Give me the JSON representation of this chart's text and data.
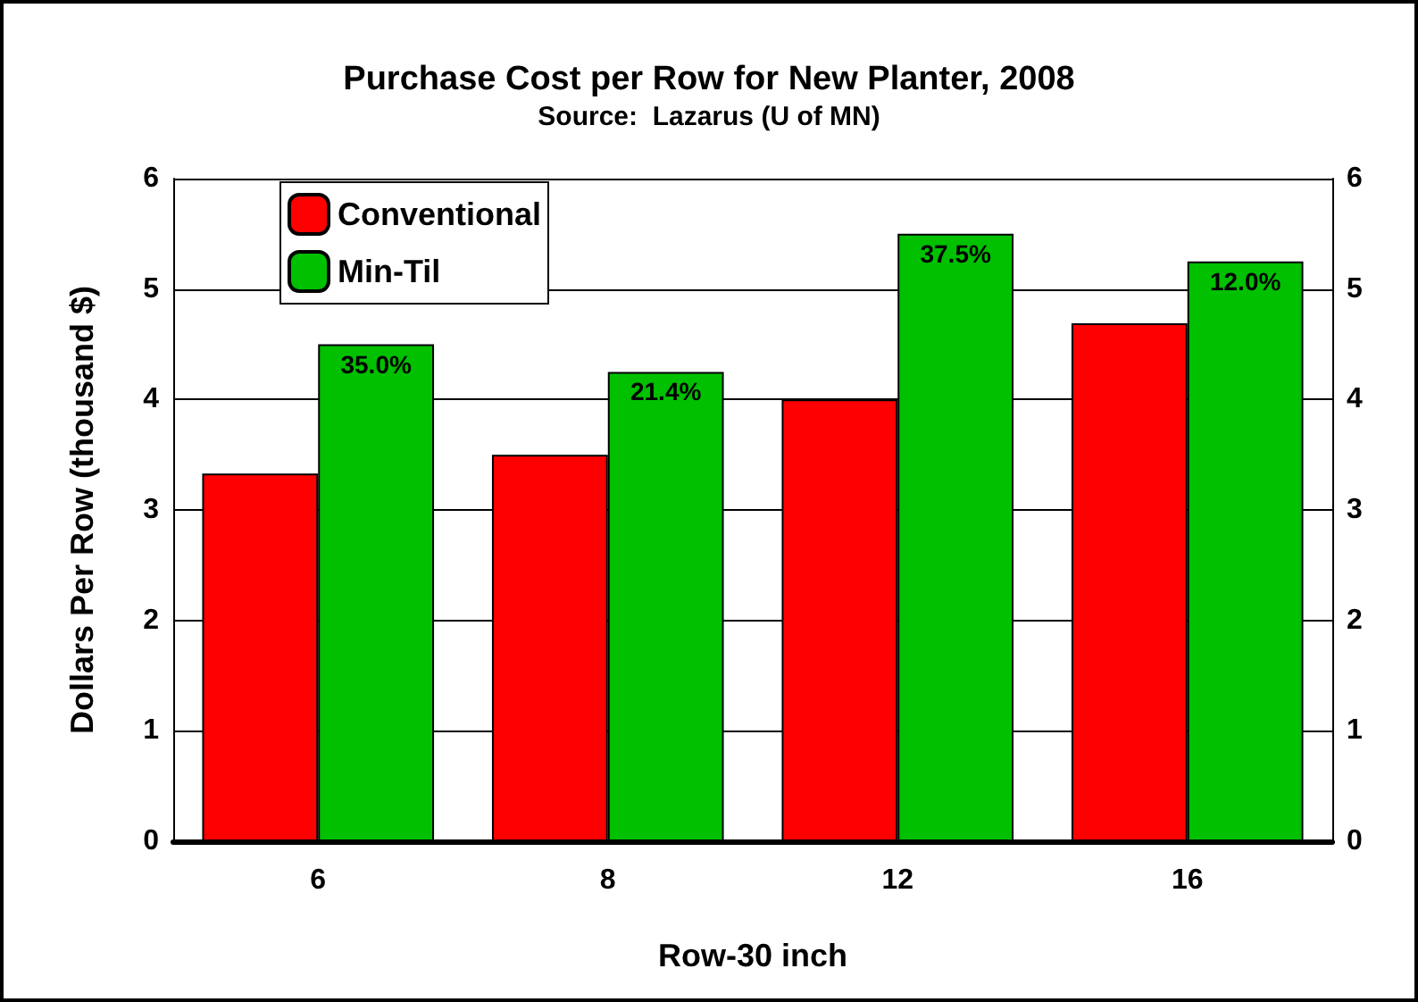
{
  "chart_data": {
    "type": "bar",
    "title": "Purchase Cost per Row for New Planter, 2008",
    "subtitle": "Source:  Lazarus (U of MN)",
    "xlabel": "Row-30 inch",
    "ylabel": "Dollars Per Row (thousand $)",
    "categories": [
      "6",
      "8",
      "12",
      "16"
    ],
    "series": [
      {
        "name": "Conventional",
        "color": "#ff0000",
        "values": [
          3.33,
          3.5,
          4.0,
          4.69
        ]
      },
      {
        "name": "Min-Til",
        "color": "#00c000",
        "values": [
          4.5,
          4.25,
          5.5,
          5.25
        ]
      }
    ],
    "annotations": [
      {
        "text": "35.0%",
        "x": "6",
        "y": 4.5
      },
      {
        "text": "21.4%",
        "x": "8",
        "y": 4.25
      },
      {
        "text": "37.5%",
        "x": "12",
        "y": 5.5
      },
      {
        "text": "12.0%",
        "x": "16",
        "y": 5.25
      }
    ],
    "ylim": [
      0,
      6
    ],
    "yticks": [
      0,
      1,
      2,
      3,
      4,
      5,
      6
    ],
    "y2lim": [
      0,
      6
    ],
    "y2ticks": [
      0,
      1,
      2,
      3,
      4,
      5,
      6
    ],
    "grid": "y",
    "legend": "top left"
  }
}
